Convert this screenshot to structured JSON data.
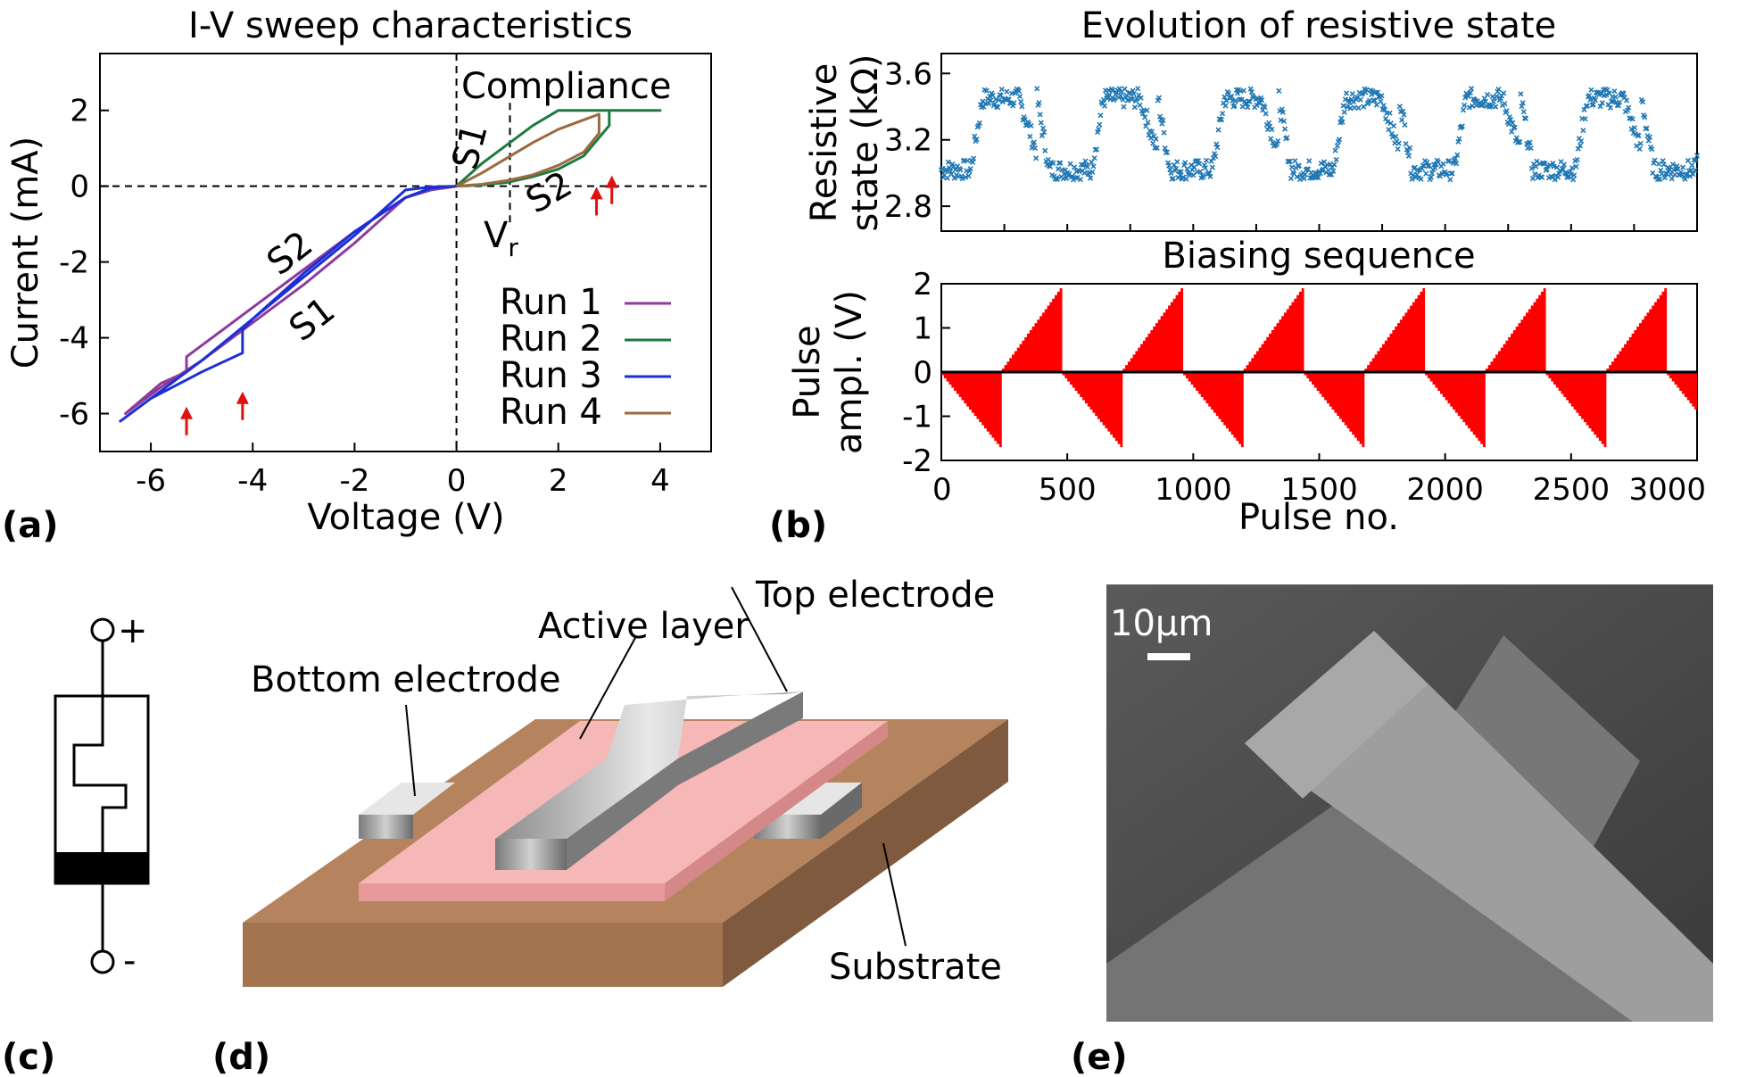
{
  "panel_labels": {
    "a": "(a)",
    "b": "(b)",
    "c": "(c)",
    "d": "(d)",
    "e": "(e)"
  },
  "chart_data": [
    {
      "id": "iv",
      "type": "line",
      "title": "I-V sweep characteristics",
      "xlabel": "Voltage (V)",
      "ylabel": "Current (mA)",
      "xlim": [
        -7,
        5
      ],
      "ylim": [
        -7,
        3.5
      ],
      "xticks": [
        -6,
        -4,
        -2,
        0,
        2,
        4
      ],
      "yticks": [
        -6,
        -4,
        -2,
        0,
        2
      ],
      "annotations": {
        "compliance": "Compliance",
        "s1_top": "S1",
        "s2_top": "S2",
        "s2_left": "S2",
        "s1_left": "S1",
        "vr": "V",
        "vr_sub": "r"
      },
      "vr_value": 1.05,
      "series": [
        {
          "name": "Run 1",
          "color": "#8e3a9c",
          "x": [
            0,
            -0.5,
            -1,
            -2,
            -3,
            -4,
            -4.5,
            -5,
            -5.3,
            -5.3,
            -5.8,
            -6.5,
            -5.8,
            -5,
            -4,
            -3,
            -2,
            -1,
            -0.5,
            0
          ],
          "y": [
            0,
            -0.1,
            -0.3,
            -1.2,
            -2.2,
            -3.2,
            -3.7,
            -4.2,
            -4.5,
            -4.9,
            -5.2,
            -6.0,
            -5.3,
            -4.6,
            -3.6,
            -2.6,
            -1.5,
            -0.3,
            -0.05,
            0
          ]
        },
        {
          "name": "Run 2",
          "color": "#1d7a3e",
          "x": [
            0,
            0.5,
            1,
            1.5,
            2,
            2.5,
            3.0,
            3.0,
            3.5,
            4.0,
            3.0,
            2.0,
            1.5,
            1.0,
            0.5,
            0
          ],
          "y": [
            0,
            0.03,
            0.1,
            0.25,
            0.45,
            0.8,
            1.6,
            2.0,
            2.0,
            2.0,
            2.0,
            2.0,
            1.6,
            1.1,
            0.6,
            0
          ]
        },
        {
          "name": "Run 3",
          "color": "#1c2fd6",
          "x": [
            0,
            -0.5,
            -1,
            -2,
            -3,
            -4,
            -4.2,
            -4.2,
            -5,
            -6,
            -6.6,
            -6,
            -5,
            -4,
            -3,
            -2,
            -1,
            -0.5,
            0
          ],
          "y": [
            0,
            -0.05,
            -0.3,
            -1.2,
            -2.3,
            -3.5,
            -3.8,
            -4.4,
            -4.9,
            -5.6,
            -6.2,
            -5.6,
            -4.6,
            -3.5,
            -2.4,
            -1.3,
            -0.1,
            -0.02,
            0
          ]
        },
        {
          "name": "Run 4",
          "color": "#9c6a40",
          "x": [
            0,
            0.5,
            1,
            1.5,
            2,
            2.5,
            2.8,
            2.8,
            2.5,
            2,
            1.5,
            1,
            0.5,
            0
          ],
          "y": [
            0,
            0.05,
            0.15,
            0.3,
            0.55,
            0.9,
            1.4,
            1.9,
            1.75,
            1.5,
            1.15,
            0.75,
            0.35,
            0
          ]
        }
      ],
      "arrows_x_y": [
        [
          -5.3,
          -5.3
        ],
        [
          -4.2,
          -4.9
        ],
        [
          2.75,
          0.5
        ],
        [
          3.05,
          0.8
        ]
      ]
    },
    {
      "id": "state",
      "type": "scatter",
      "title": "Evolution of resistive state",
      "ylabel": "Resistive state (kΩ)",
      "ylabel_lines": [
        "Resistive",
        "state (kΩ)"
      ],
      "xlim": [
        0,
        3000
      ],
      "ylim": [
        2.65,
        3.72
      ],
      "yticks": [
        "3.6",
        "3.2",
        "2.8"
      ],
      "ytick_values": [
        3.6,
        3.2,
        2.8
      ],
      "color": "#1f77b4",
      "cycle_pulses": 480,
      "low": 3.02,
      "high": 3.45,
      "mid": 3.12
    },
    {
      "id": "pulses",
      "type": "bar",
      "title": "Biasing sequence",
      "xlabel": "Pulse no.",
      "ylabel": "Pulse ampl. (V)",
      "ylabel_lines": [
        "Pulse",
        "ampl. (V)"
      ],
      "xlim": [
        0,
        3000
      ],
      "ylim": [
        -2,
        2
      ],
      "xticks": [
        0,
        500,
        1000,
        1500,
        2000,
        2500,
        3000
      ],
      "yticks": [
        2,
        1,
        0,
        -1,
        -2
      ],
      "color": "#ff0000",
      "segment_pulses": 240,
      "neg_peak": -1.7,
      "pos_peak": 1.9
    }
  ],
  "circuit": {
    "plus": "+",
    "minus": "-"
  },
  "device": {
    "top_electrode": "Top electrode",
    "active_layer": "Active layer",
    "bottom_electrode": "Bottom electrode",
    "substrate": "Substrate"
  },
  "sem": {
    "scale_bar": "10μm"
  }
}
